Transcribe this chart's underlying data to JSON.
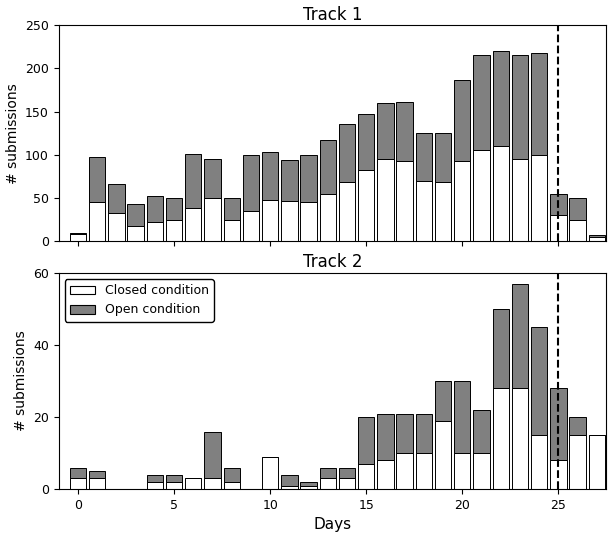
{
  "track1": {
    "title": "Track 1",
    "days": [
      0,
      1,
      2,
      3,
      4,
      5,
      6,
      7,
      8,
      9,
      10,
      11,
      12,
      13,
      14,
      15,
      16,
      17,
      18,
      19,
      20,
      21,
      22,
      23,
      24,
      25,
      26,
      27
    ],
    "closed": [
      8,
      45,
      33,
      18,
      22,
      25,
      38,
      50,
      25,
      35,
      48,
      47,
      45,
      55,
      68,
      82,
      95,
      93,
      70,
      68,
      93,
      105,
      110,
      95,
      100,
      30,
      25,
      5
    ],
    "open": [
      2,
      52,
      33,
      25,
      30,
      25,
      63,
      45,
      25,
      65,
      55,
      47,
      55,
      62,
      68,
      65,
      65,
      68,
      55,
      57,
      93,
      110,
      110,
      120,
      118,
      25,
      25,
      2
    ]
  },
  "track2": {
    "title": "Track 2",
    "days": [
      0,
      1,
      2,
      3,
      4,
      5,
      6,
      7,
      8,
      9,
      10,
      11,
      12,
      13,
      14,
      15,
      16,
      17,
      18,
      19,
      20,
      21,
      22,
      23,
      24,
      25,
      26,
      27
    ],
    "closed": [
      3,
      3,
      0,
      0,
      2,
      2,
      3,
      3,
      2,
      0,
      9,
      1,
      1,
      3,
      3,
      7,
      8,
      10,
      10,
      19,
      10,
      10,
      28,
      28,
      15,
      8,
      15,
      15
    ],
    "open": [
      3,
      2,
      0,
      0,
      2,
      2,
      0,
      13,
      4,
      0,
      0,
      3,
      1,
      3,
      3,
      13,
      13,
      11,
      11,
      11,
      20,
      12,
      22,
      29,
      30,
      20,
      5,
      0
    ]
  },
  "closed_color": "#ffffff",
  "open_color": "#808080",
  "edge_color": "#000000",
  "dashed_line_x": 25,
  "ylabel": "# submissions",
  "xlabel": "Days",
  "track1_ylim": [
    0,
    250
  ],
  "track2_ylim": [
    0,
    60
  ],
  "track1_yticks": [
    0,
    50,
    100,
    150,
    200,
    250
  ],
  "track2_yticks": [
    0,
    20,
    40,
    60
  ],
  "xticks": [
    0,
    5,
    10,
    15,
    20,
    25
  ],
  "legend_labels": [
    "Closed condition",
    "Open condition"
  ]
}
